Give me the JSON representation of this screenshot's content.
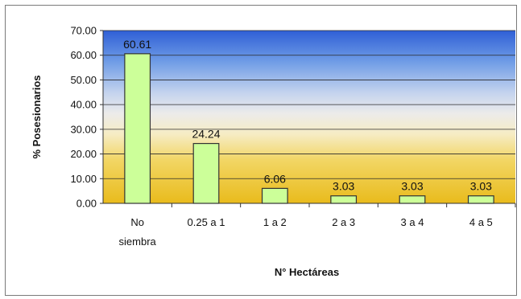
{
  "chart_data": {
    "type": "bar",
    "categories": [
      [
        "No",
        "siembra"
      ],
      [
        "0.25 a 1"
      ],
      [
        "1 a 2"
      ],
      [
        "2 a 3"
      ],
      [
        "3 a 4"
      ],
      [
        "4 a 5"
      ]
    ],
    "values": [
      60.61,
      24.24,
      6.06,
      3.03,
      3.03,
      3.03
    ],
    "data_labels": [
      "60.61",
      "24.24",
      "6.06",
      "3.03",
      "3.03",
      "3.03"
    ],
    "y_ticks": [
      "0.00",
      "10.00",
      "20.00",
      "30.00",
      "40.00",
      "50.00",
      "60.00",
      "70.00"
    ],
    "ylim": [
      0,
      70
    ],
    "ylabel": "% Posesionarios",
    "xlabel": "N° Hectáreas",
    "grid": true,
    "bar_color": "#ccff99",
    "bar_border_color": "#333333",
    "background": "gradient-blue-white-yellow"
  }
}
